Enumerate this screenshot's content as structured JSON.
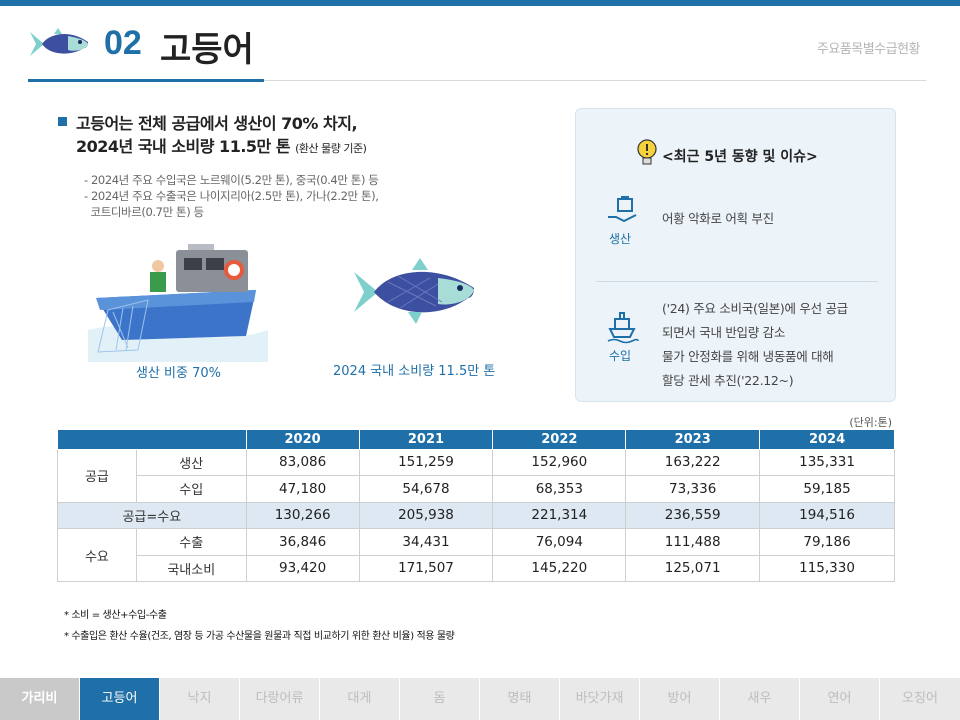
{
  "header": {
    "number": "02",
    "title": "고등어",
    "subtitle": "주요품목별수급현황"
  },
  "summary": {
    "line1": "고등어는 전체 공급에서 생산이 70% 차지,",
    "line2": "2024년 국내 소비량 11.5만 톤",
    "line2_note": "(환산 물량 기준)"
  },
  "notes": [
    "- 2024년 주요 수입국은 노르웨이(5.2만 톤), 중국(0.4만 톤) 등",
    "- 2024년 주요 수출국은 나이지리아(2.5만 톤), 가나(2.2만 톤),",
    "  코트디바르(0.7만 톤) 등"
  ],
  "captions": {
    "production": "생산 비중 70%",
    "consumption": "2024 국내 소비량 11.5만 톤"
  },
  "panel": {
    "title": "<최근 5년 동향 및 이슈>",
    "production_label": "생산",
    "production_text": "어황 악화로 어획 부진",
    "import_label": "수입",
    "import_lines": [
      "('24) 주요 소비국(일본)에 우선 공급",
      "되면서 국내 반입량 감소",
      "물가 안정화를 위해 냉동품에 대해",
      "할당 관세 추진('22.12~)"
    ]
  },
  "table": {
    "unit": "(단위:톤)",
    "years": [
      "2020",
      "2021",
      "2022",
      "2023",
      "2024"
    ],
    "supply_label": "공급",
    "demand_label": "수요",
    "total_label": "공급=수요",
    "rows": {
      "production": {
        "label": "생산",
        "values": [
          "83,086",
          "151,259",
          "152,960",
          "163,222",
          "135,331"
        ]
      },
      "import": {
        "label": "수입",
        "values": [
          "47,180",
          "54,678",
          "68,353",
          "73,336",
          "59,185"
        ]
      },
      "total": {
        "values": [
          "130,266",
          "205,938",
          "221,314",
          "236,559",
          "194,516"
        ]
      },
      "export": {
        "label": "수출",
        "values": [
          "36,846",
          "34,431",
          "76,094",
          "111,488",
          "79,186"
        ]
      },
      "consumption": {
        "label": "국내소비",
        "values": [
          "93,420",
          "171,507",
          "145,220",
          "125,071",
          "115,330"
        ]
      }
    }
  },
  "footnotes": [
    "* 소비 = 생산+수입-수출",
    "* 수출입은 환산 수율(건조, 염장 등 가공 수산물을 원물과 직접 비교하기 위한 환산 비율) 적용 물량"
  ],
  "nav": [
    "가리비",
    "고등어",
    "낙지",
    "다랑어류",
    "대게",
    "돔",
    "명태",
    "바닷가재",
    "방어",
    "새우",
    "연어",
    "오징어"
  ],
  "colors": {
    "accent": "#1f6fa8",
    "panel_bg": "#edf4f9",
    "total_row": "#dde8f2"
  }
}
